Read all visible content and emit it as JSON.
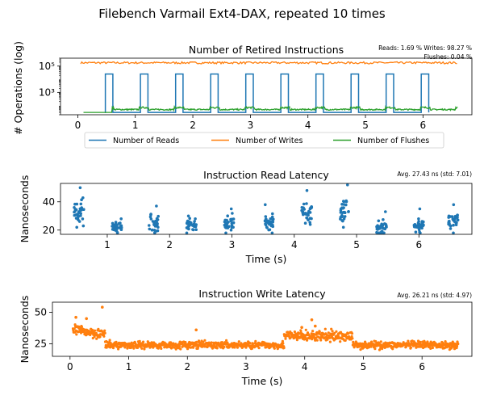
{
  "figure": {
    "suptitle": "Filebench Varmail Ext4-DAX, repeated 10 times"
  },
  "chart_data": [
    {
      "type": "line",
      "title": "Number of Retired Instructions",
      "annotation": [
        "Reads: 1.69 % Writes: 98.27 %",
        "Flushes: 0.04 %"
      ],
      "ylabel": "# Operations (log)",
      "yscale": "log",
      "ylim": [
        20,
        400000
      ],
      "yticks": [
        1000,
        100000
      ],
      "ytick_labels": [
        "10³",
        "10⁵"
      ],
      "xlim": [
        -0.3,
        6.85
      ],
      "xticks": [
        0,
        1,
        2,
        3,
        4,
        5,
        6
      ],
      "xtick_labels": [
        "0",
        "1",
        "2",
        "3",
        "4",
        "5",
        "6"
      ],
      "legend": {
        "placement": "below-center",
        "columns": 3
      },
      "repeats": 10,
      "period_s": 0.61,
      "series": [
        {
          "name": "Number of Reads",
          "color": "#1f77b4",
          "pattern": "square pulse once per repeat",
          "high": 25000,
          "low": 30,
          "high_window_s": [
            0.48,
            0.61
          ]
        },
        {
          "name": "Number of Writes",
          "color": "#ff7f0e",
          "pattern": "steady",
          "x_range": [
            0.05,
            6.6
          ],
          "level": 180000
        },
        {
          "name": "Number of Flushes",
          "color": "#2ca02c",
          "pattern": "bursts each repeat",
          "x_range": [
            0.1,
            6.6
          ],
          "high": 70,
          "low": 30
        }
      ]
    },
    {
      "type": "scatter",
      "title": "Instruction Read Latency",
      "annotation": "Avg. 27.43 ns (std: 7.01)",
      "xlabel": "Time (s)",
      "ylabel": "Nanoseconds",
      "xlim": [
        0.25,
        6.85
      ],
      "ylim": [
        17,
        53
      ],
      "xticks": [
        1,
        2,
        3,
        4,
        5,
        6
      ],
      "xtick_labels": [
        "1",
        "2",
        "3",
        "4",
        "5",
        "6"
      ],
      "yticks": [
        20,
        40
      ],
      "ytick_labels": [
        "20",
        "40"
      ],
      "color": "#1f77b4",
      "clusters": [
        {
          "x": 0.55,
          "ymin": 22,
          "ymax": 50,
          "center": 32
        },
        {
          "x": 1.15,
          "ymin": 18,
          "ymax": 28,
          "center": 22
        },
        {
          "x": 1.75,
          "ymin": 18,
          "ymax": 37,
          "center": 24
        },
        {
          "x": 2.35,
          "ymin": 18,
          "ymax": 30,
          "center": 24
        },
        {
          "x": 2.95,
          "ymin": 18,
          "ymax": 35,
          "center": 25
        },
        {
          "x": 3.6,
          "ymin": 18,
          "ymax": 38,
          "center": 24
        },
        {
          "x": 4.2,
          "ymin": 24,
          "ymax": 48,
          "center": 32
        },
        {
          "x": 4.8,
          "ymin": 22,
          "ymax": 52,
          "center": 32
        },
        {
          "x": 5.4,
          "ymin": 18,
          "ymax": 33,
          "center": 22
        },
        {
          "x": 6.0,
          "ymin": 18,
          "ymax": 35,
          "center": 24
        },
        {
          "x": 6.55,
          "ymin": 18,
          "ymax": 38,
          "center": 26
        }
      ]
    },
    {
      "type": "scatter",
      "title": "Instruction Write Latency",
      "annotation": "Avg. 26.21 ns (std: 4.97)",
      "xlabel": "Time (s)",
      "ylabel": "Nanoseconds",
      "xlim": [
        -0.3,
        6.85
      ],
      "ylim": [
        15,
        58
      ],
      "xticks": [
        0,
        1,
        2,
        3,
        4,
        5,
        6
      ],
      "xtick_labels": [
        "0",
        "1",
        "2",
        "3",
        "4",
        "5",
        "6"
      ],
      "yticks": [
        25,
        50
      ],
      "ytick_labels": [
        "25",
        "50"
      ],
      "color": "#ff7f0e",
      "segments": [
        {
          "x_range": [
            0.05,
            0.6
          ],
          "center": 36,
          "spread": 3
        },
        {
          "x_range": [
            0.6,
            3.65
          ],
          "center": 24,
          "spread": 2
        },
        {
          "x_range": [
            3.65,
            4.82
          ],
          "center": 31,
          "spread": 3
        },
        {
          "x_range": [
            4.82,
            6.62
          ],
          "center": 24,
          "spread": 2
        }
      ],
      "outliers": [
        {
          "x": 0.55,
          "y": 54
        },
        {
          "x": 0.28,
          "y": 45
        },
        {
          "x": 2.15,
          "y": 36
        },
        {
          "x": 3.95,
          "y": 38
        },
        {
          "x": 4.12,
          "y": 44
        },
        {
          "x": 4.18,
          "y": 39
        },
        {
          "x": 0.1,
          "y": 46
        }
      ]
    }
  ]
}
